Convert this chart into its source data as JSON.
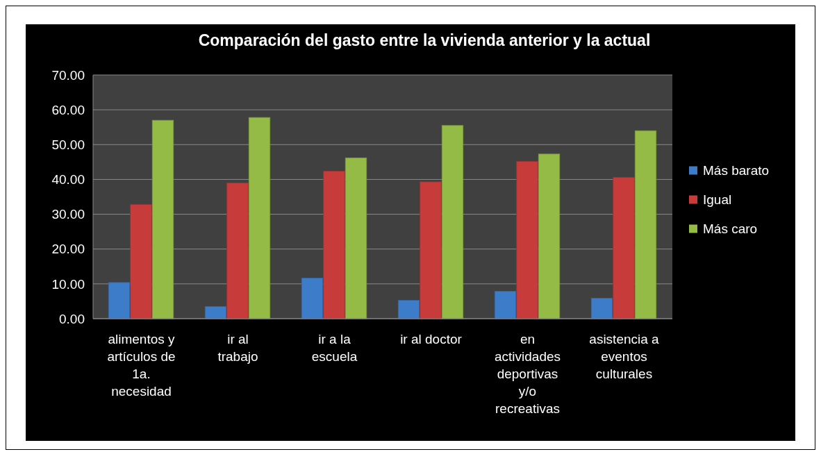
{
  "chart_data": {
    "type": "bar",
    "title": "Comparación  del gasto entre la vivienda anterior y la actual",
    "categories": [
      "alimentos y artículos de 1a. necesidad",
      "ir al trabajo",
      "ir a la escuela",
      "ir al doctor",
      "en actividades deportivas y/o recreativas",
      "asistencia a eventos culturales"
    ],
    "series": [
      {
        "name": "Más barato",
        "color": "#3d7cc9",
        "values": [
          10.4,
          3.5,
          11.7,
          5.3,
          7.9,
          5.9
        ]
      },
      {
        "name": "Igual",
        "color": "#c73c3a",
        "values": [
          32.8,
          39.0,
          42.4,
          39.3,
          45.2,
          40.6
        ]
      },
      {
        "name": "Más caro",
        "color": "#93bb45",
        "values": [
          57.0,
          57.8,
          46.2,
          55.5,
          47.3,
          54.0
        ]
      }
    ],
    "ylim": [
      0,
      70
    ],
    "yticks": [
      {
        "value": 0,
        "label": "0.00"
      },
      {
        "value": 10,
        "label": "10.00"
      },
      {
        "value": 20,
        "label": "20.00"
      },
      {
        "value": 30,
        "label": "30.00"
      },
      {
        "value": 40,
        "label": "40.00"
      },
      {
        "value": 50,
        "label": "50.00"
      },
      {
        "value": 60,
        "label": "60.00"
      },
      {
        "value": 70,
        "label": "70.00"
      }
    ],
    "grid": true,
    "legend": "right"
  }
}
